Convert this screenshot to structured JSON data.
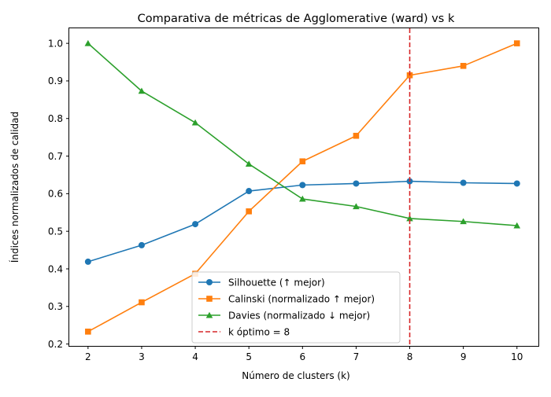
{
  "chart_data": {
    "type": "line",
    "title": "Comparativa de métricas de Agglomerative (ward) vs k",
    "xlabel": "Número de clusters (k)",
    "ylabel": "Índices normalizados de calidad",
    "x": [
      2,
      3,
      4,
      5,
      6,
      7,
      8,
      9,
      10
    ],
    "xlim": [
      1.65,
      10.4
    ],
    "ylim": [
      0.195,
      1.04
    ],
    "xticks": [
      "2",
      "3",
      "4",
      "5",
      "6",
      "7",
      "8",
      "9",
      "10"
    ],
    "yticks": [
      "0.2",
      "0.3",
      "0.4",
      "0.5",
      "0.6",
      "0.7",
      "0.8",
      "0.9",
      "1.0"
    ],
    "grid": false,
    "legend_position": "lower center",
    "series": [
      {
        "name": "Silhouette (↑ mejor)",
        "marker": "circle",
        "color": "#1f77b4",
        "values": [
          0.419,
          0.463,
          0.519,
          0.607,
          0.623,
          0.627,
          0.633,
          0.629,
          0.627
        ]
      },
      {
        "name": "Calinski (normalizado ↑ mejor)",
        "marker": "square",
        "color": "#ff7f0e",
        "values": [
          0.233,
          0.311,
          0.387,
          0.553,
          0.686,
          0.754,
          0.915,
          0.94,
          1.0
        ]
      },
      {
        "name": "Davies (normalizado ↓ mejor)",
        "marker": "triangle",
        "color": "#2ca02c",
        "values": [
          1.0,
          0.873,
          0.789,
          0.679,
          0.586,
          0.566,
          0.534,
          0.526,
          0.515
        ]
      }
    ],
    "vline": {
      "x": 8,
      "label": "k óptimo = 8",
      "color": "#d62728",
      "style": "dashed"
    }
  }
}
